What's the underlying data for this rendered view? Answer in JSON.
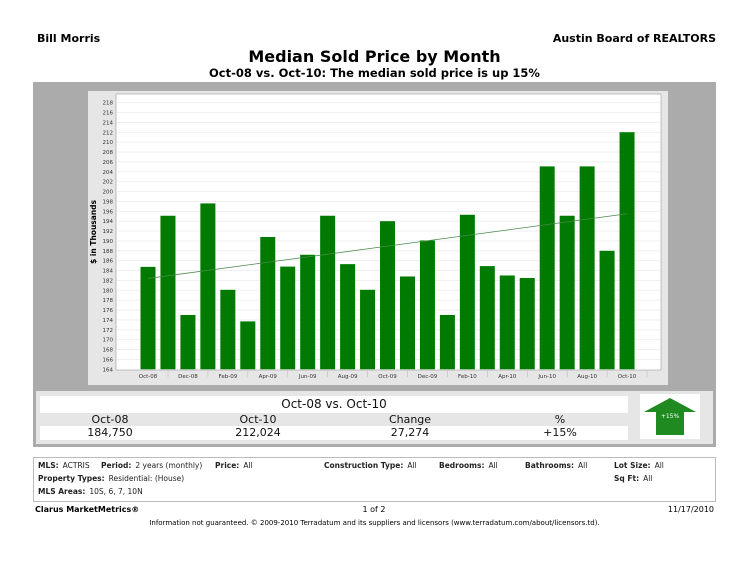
{
  "header": {
    "left": "Bill Morris",
    "right": "Austin Board of REALTORS",
    "title": "Median Sold Price by Month",
    "subtitle": "Oct-08 vs. Oct-10:  The median sold price is up 15%"
  },
  "chart_data": {
    "type": "bar",
    "title": "",
    "ylabel": "$ in Thousands",
    "xlabel": "",
    "ylim": [
      164,
      218
    ],
    "ytick_step": 2,
    "grid": true,
    "categories": [
      "Oct-08",
      "Nov-08",
      "Dec-08",
      "Jan-09",
      "Feb-09",
      "Mar-09",
      "Apr-09",
      "May-09",
      "Jun-09",
      "Jul-09",
      "Aug-09",
      "Sep-09",
      "Oct-09",
      "Nov-09",
      "Dec-09",
      "Jan-10",
      "Feb-10",
      "Mar-10",
      "Apr-10",
      "May-10",
      "Jun-10",
      "Jul-10",
      "Aug-10",
      "Sep-10",
      "Oct-10"
    ],
    "xtick_labels": [
      "Oct-08",
      "Dec-08",
      "Feb-09",
      "Apr-09",
      "Jun-09",
      "Aug-09",
      "Oct-09",
      "Dec-09",
      "Feb-10",
      "Apr-10",
      "Jun-10",
      "Aug-10",
      "Oct-10"
    ],
    "values": [
      184.75,
      195.1,
      175.0,
      197.6,
      180.1,
      173.7,
      190.8,
      184.8,
      187.2,
      195.1,
      185.3,
      180.1,
      194.0,
      182.8,
      190.1,
      175.0,
      195.3,
      184.9,
      183.0,
      182.5,
      205.1,
      195.1,
      205.1,
      188.0,
      212.024
    ],
    "trendline": {
      "start": 182.4,
      "end": 195.5
    },
    "bar_color": "#007a00",
    "trend_color": "#4a8a4a"
  },
  "summary": {
    "title": "Oct-08 vs. Oct-10",
    "headers": [
      "Oct-08",
      "Oct-10",
      "Change",
      "%"
    ],
    "values": [
      "184,750",
      "212,024",
      "27,274",
      "+15%"
    ],
    "badge": "+15%",
    "badge_icon": "arrow-up-icon",
    "badge_color": "#1f8a1f"
  },
  "criteria": {
    "mls_label": "MLS:",
    "mls": "ACTRIS",
    "period_label": "Period:",
    "period": "2 years (monthly)",
    "price_label": "Price:",
    "price": "All",
    "construction_label": "Construction Type:",
    "construction": "All",
    "bedrooms_label": "Bedrooms:",
    "bedrooms": "All",
    "bathrooms_label": "Bathrooms:",
    "bathrooms": "All",
    "lot_label": "Lot Size:",
    "lot": "All",
    "ptype_label": "Property Types:",
    "ptype": "Residential: (House)",
    "sqft_label": "Sq Ft:",
    "sqft": "All",
    "areas_label": "MLS Areas:",
    "areas": "10S, 6, 7, 10N"
  },
  "footer": {
    "brand": "Clarus MarketMetrics®",
    "page": "1 of 2",
    "date": "11/17/2010",
    "disclaimer": "Information not guaranteed.  © 2009-2010 Terradatum and its suppliers and licensors (www.terradatum.com/about/licensors.td)."
  }
}
